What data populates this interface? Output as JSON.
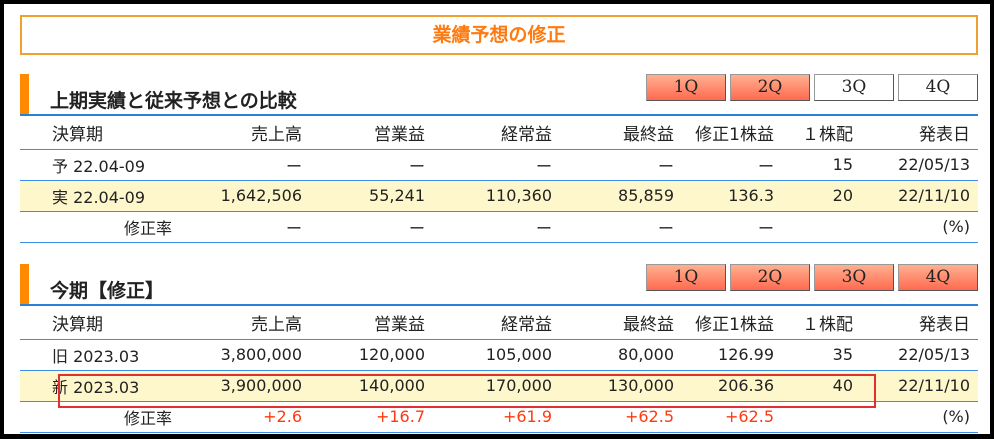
{
  "banner": "業績予想の修正",
  "tabs": [
    "1Q",
    "2Q",
    "3Q",
    "4Q"
  ],
  "columns": [
    "決算期",
    "売上高",
    "営業益",
    "経常益",
    "最終益",
    "修正1株益",
    "１株配",
    "発表日"
  ],
  "section1": {
    "title": "上期実績と従来予想との比較",
    "active_tabs": [
      "1Q",
      "2Q"
    ],
    "rows": [
      {
        "label": "予 22.04-09",
        "sales": "ー",
        "op": "ー",
        "ord": "ー",
        "net": "ー",
        "eps": "ー",
        "div": "15",
        "date": "22/05/13"
      },
      {
        "label": "実 22.04-09",
        "sales": "1,642,506",
        "op": "55,241",
        "ord": "110,360",
        "net": "85,859",
        "eps": "136.3",
        "div": "20",
        "date": "22/11/10"
      }
    ],
    "rate": {
      "label": "修正率",
      "sales": "ー",
      "op": "ー",
      "ord": "ー",
      "net": "ー",
      "eps": "ー",
      "div": "",
      "unit": "(%)"
    }
  },
  "section2": {
    "title": "今期【修正】",
    "active_tabs": [
      "1Q",
      "2Q",
      "3Q",
      "4Q"
    ],
    "rows": [
      {
        "label": "旧 2023.03",
        "sales": "3,800,000",
        "op": "120,000",
        "ord": "105,000",
        "net": "80,000",
        "eps": "126.99",
        "div": "35",
        "date": "22/05/13"
      },
      {
        "label": "新 2023.03",
        "sales": "3,900,000",
        "op": "140,000",
        "ord": "170,000",
        "net": "130,000",
        "eps": "206.36",
        "div": "40",
        "date": "22/11/10"
      }
    ],
    "rate": {
      "label": "修正率",
      "sales": "+2.6",
      "op": "+16.7",
      "ord": "+61.9",
      "net": "+62.5",
      "eps": "+62.5",
      "div": "",
      "unit": "(%)"
    }
  }
}
